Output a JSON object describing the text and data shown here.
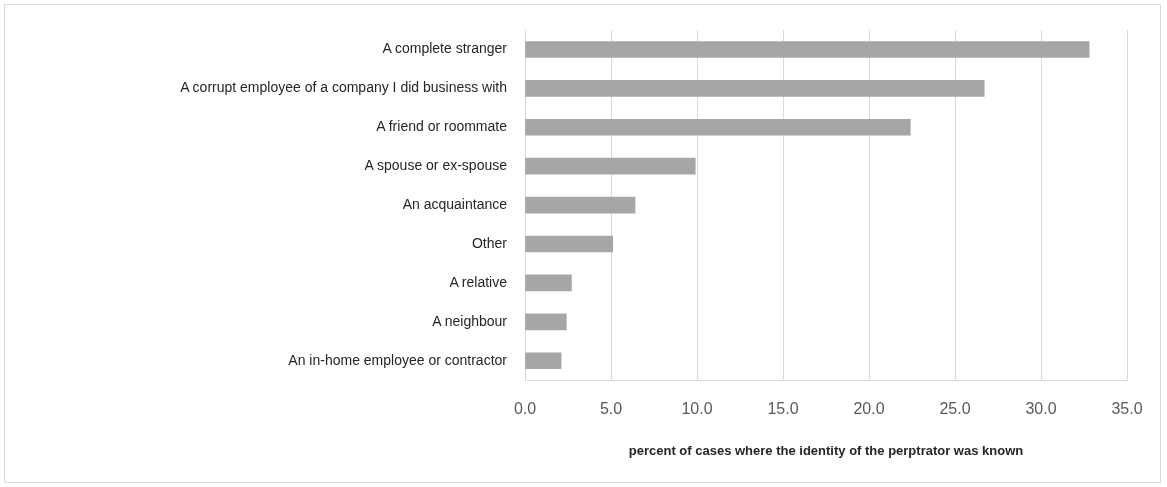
{
  "chart_data": {
    "type": "bar",
    "orientation": "horizontal",
    "categories": [
      "A complete stranger",
      "A corrupt employee of a company I did business with",
      "A friend or roommate",
      "A spouse or ex-spouse",
      "An acquaintance",
      "Other",
      "A relative",
      "A neighbour",
      "An in-home employee or contractor"
    ],
    "values": [
      32.8,
      26.7,
      22.4,
      9.9,
      6.4,
      5.1,
      2.7,
      2.4,
      2.1
    ],
    "color": "#a6a6a6",
    "xlabel": "percent of cases where the identity of the perptrator was known",
    "xlim": [
      0,
      35
    ],
    "xticks": [
      {
        "value": 0,
        "label": "0.0"
      },
      {
        "value": 5,
        "label": "5.0"
      },
      {
        "value": 10,
        "label": "10.0"
      },
      {
        "value": 15,
        "label": "15.0"
      },
      {
        "value": 20,
        "label": "20.0"
      },
      {
        "value": 25,
        "label": "25.0"
      },
      {
        "value": 30,
        "label": "30.0"
      },
      {
        "value": 35,
        "label": "35.0"
      }
    ],
    "grid": "x",
    "legend": false
  }
}
